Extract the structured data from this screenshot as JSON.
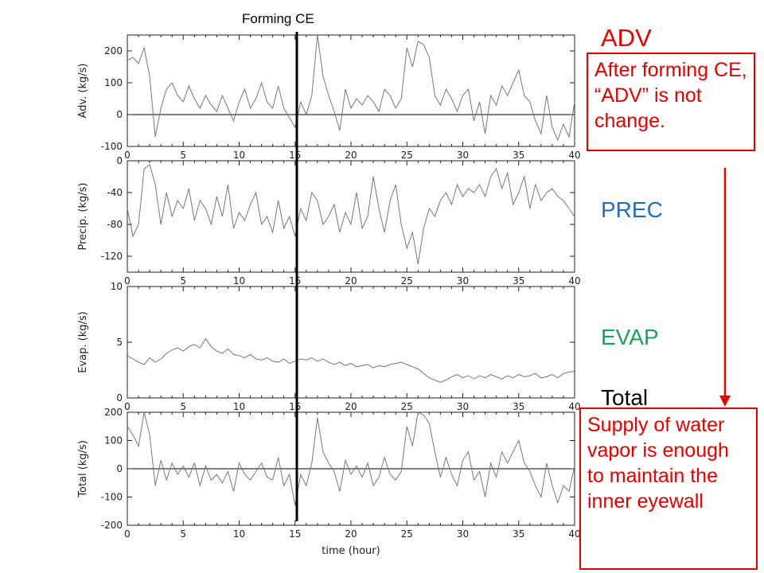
{
  "annotations": {
    "forming_ce_label": "Forming CE",
    "labels": {
      "adv": "ADV",
      "prec": "PREC",
      "evap": "EVAP",
      "total": "Total"
    },
    "adv_note": "After forming CE, “ADV” is not change.",
    "total_note": "Supply of water vapor is enough to maintain the inner eyewall",
    "colors": {
      "adv": "#e60000",
      "prec": "#1f6fba",
      "evap": "#1aa35a",
      "total": "#000000",
      "note": "#e60000",
      "arrow": "#e60000"
    }
  },
  "chart_data": [
    {
      "type": "line",
      "ylabel": "Adv. (kg/s)",
      "xlim": [
        0,
        40
      ],
      "ylim": [
        -100,
        250
      ],
      "yticks": [
        -100,
        0,
        100,
        200
      ],
      "xticks": [
        0,
        5,
        10,
        15,
        20,
        25,
        30,
        35,
        40
      ],
      "zero_line": true,
      "vline_x": 15.2,
      "x": [
        0,
        0.5,
        1,
        1.5,
        2,
        2.5,
        3,
        3.5,
        4,
        4.5,
        5,
        5.5,
        6,
        6.5,
        7,
        7.5,
        8,
        8.5,
        9,
        9.5,
        10,
        10.5,
        11,
        11.5,
        12,
        12.5,
        13,
        13.5,
        14,
        14.5,
        15,
        15.5,
        16,
        16.5,
        17,
        17.5,
        18,
        18.5,
        19,
        19.5,
        20,
        20.5,
        21,
        21.5,
        22,
        22.5,
        23,
        23.5,
        24,
        24.5,
        25,
        25.5,
        26,
        26.5,
        27,
        27.5,
        28,
        28.5,
        29,
        29.5,
        30,
        30.5,
        31,
        31.5,
        32,
        32.5,
        33,
        33.5,
        34,
        34.5,
        35,
        35.5,
        36,
        36.5,
        37,
        37.5,
        38,
        38.5,
        39,
        39.5,
        40
      ],
      "y": [
        170,
        180,
        160,
        210,
        120,
        -70,
        20,
        80,
        100,
        60,
        40,
        90,
        50,
        20,
        60,
        30,
        10,
        60,
        20,
        -20,
        40,
        80,
        20,
        50,
        100,
        40,
        20,
        90,
        20,
        -10,
        -40,
        40,
        0,
        60,
        250,
        120,
        60,
        10,
        -50,
        80,
        20,
        50,
        30,
        60,
        40,
        10,
        80,
        60,
        20,
        50,
        210,
        150,
        230,
        220,
        180,
        60,
        30,
        80,
        50,
        10,
        60,
        80,
        -20,
        40,
        -60,
        60,
        30,
        90,
        60,
        100,
        140,
        60,
        40,
        -20,
        -60,
        60,
        -40,
        -80,
        -30,
        -70,
        40
      ]
    },
    {
      "type": "line",
      "ylabel": "Precip. (kg/s)",
      "xlim": [
        0,
        40
      ],
      "ylim": [
        -140,
        0
      ],
      "yticks": [
        -120,
        -80,
        -40,
        0
      ],
      "xticks": [
        0,
        5,
        10,
        15,
        20,
        25,
        30,
        35,
        40
      ],
      "zero_line": false,
      "vline_x": 15.2,
      "x": [
        0,
        0.5,
        1,
        1.5,
        2,
        2.5,
        3,
        3.5,
        4,
        4.5,
        5,
        5.5,
        6,
        6.5,
        7,
        7.5,
        8,
        8.5,
        9,
        9.5,
        10,
        10.5,
        11,
        11.5,
        12,
        12.5,
        13,
        13.5,
        14,
        14.5,
        15,
        15.5,
        16,
        16.5,
        17,
        17.5,
        18,
        18.5,
        19,
        19.5,
        20,
        20.5,
        21,
        21.5,
        22,
        22.5,
        23,
        23.5,
        24,
        24.5,
        25,
        25.5,
        26,
        26.5,
        27,
        27.5,
        28,
        28.5,
        29,
        29.5,
        30,
        30.5,
        31,
        31.5,
        32,
        32.5,
        33,
        33.5,
        34,
        34.5,
        35,
        35.5,
        36,
        36.5,
        37,
        37.5,
        38,
        38.5,
        39,
        39.5,
        40
      ],
      "y": [
        -60,
        -95,
        -80,
        -10,
        -5,
        -30,
        -80,
        -40,
        -70,
        -50,
        -60,
        -35,
        -75,
        -50,
        -60,
        -80,
        -45,
        -70,
        -30,
        -85,
        -65,
        -75,
        -55,
        -40,
        -80,
        -70,
        -90,
        -50,
        -85,
        -70,
        -95,
        -60,
        -75,
        -40,
        -50,
        -80,
        -70,
        -55,
        -90,
        -65,
        -80,
        -40,
        -85,
        -70,
        -20,
        -60,
        -90,
        -50,
        -30,
        -80,
        -110,
        -90,
        -130,
        -85,
        -60,
        -70,
        -50,
        -40,
        -55,
        -30,
        -45,
        -35,
        -40,
        -30,
        -45,
        -20,
        -10,
        -35,
        -15,
        -55,
        -40,
        -20,
        -60,
        -30,
        -50,
        -40,
        -35,
        -45,
        -50,
        -60,
        -70
      ]
    },
    {
      "type": "line",
      "ylabel": "Evap. (kg/s)",
      "xlim": [
        0,
        40
      ],
      "ylim": [
        0,
        10
      ],
      "yticks": [
        0,
        5,
        10
      ],
      "xticks": [
        0,
        5,
        10,
        15,
        20,
        25,
        30,
        35,
        40
      ],
      "zero_line": false,
      "vline_x": 15.2,
      "x": [
        0,
        0.5,
        1,
        1.5,
        2,
        2.5,
        3,
        3.5,
        4,
        4.5,
        5,
        5.5,
        6,
        6.5,
        7,
        7.5,
        8,
        8.5,
        9,
        9.5,
        10,
        10.5,
        11,
        11.5,
        12,
        12.5,
        13,
        13.5,
        14,
        14.5,
        15,
        15.5,
        16,
        16.5,
        17,
        17.5,
        18,
        18.5,
        19,
        19.5,
        20,
        20.5,
        21,
        21.5,
        22,
        22.5,
        23,
        23.5,
        24,
        24.5,
        25,
        25.5,
        26,
        26.5,
        27,
        27.5,
        28,
        28.5,
        29,
        29.5,
        30,
        30.5,
        31,
        31.5,
        32,
        32.5,
        33,
        33.5,
        34,
        34.5,
        35,
        35.5,
        36,
        36.5,
        37,
        37.5,
        38,
        38.5,
        39,
        39.5,
        40
      ],
      "y": [
        3.8,
        3.5,
        3.2,
        3.0,
        3.6,
        3.2,
        3.5,
        4.0,
        4.3,
        4.5,
        4.2,
        4.6,
        4.8,
        4.5,
        5.3,
        4.6,
        4.2,
        4.0,
        4.4,
        3.9,
        3.8,
        3.6,
        3.9,
        3.5,
        3.4,
        3.6,
        3.3,
        3.2,
        3.5,
        3.1,
        3.3,
        3.5,
        3.4,
        3.6,
        3.3,
        3.5,
        3.2,
        3.0,
        3.2,
        2.9,
        3.1,
        2.8,
        2.9,
        3.0,
        2.7,
        2.9,
        2.8,
        3.0,
        3.1,
        3.2,
        3.0,
        2.8,
        2.6,
        2.2,
        1.8,
        1.6,
        1.4,
        1.6,
        1.9,
        2.1,
        1.8,
        2.0,
        1.7,
        2.0,
        1.8,
        2.1,
        1.9,
        1.7,
        2.0,
        1.8,
        2.1,
        1.9,
        2.0,
        2.2,
        1.8,
        1.9,
        2.1,
        1.8,
        2.2,
        2.3,
        2.4
      ]
    },
    {
      "type": "line",
      "ylabel": "Total (kg/s)",
      "xlabel": "time (hour)",
      "xlim": [
        0,
        40
      ],
      "ylim": [
        -200,
        200
      ],
      "yticks": [
        -200,
        -100,
        0,
        100,
        200
      ],
      "xticks": [
        0,
        5,
        10,
        15,
        20,
        25,
        30,
        35,
        40
      ],
      "zero_line": true,
      "vline_x": 15.2,
      "x": [
        0,
        0.5,
        1,
        1.5,
        2,
        2.5,
        3,
        3.5,
        4,
        4.5,
        5,
        5.5,
        6,
        6.5,
        7,
        7.5,
        8,
        8.5,
        9,
        9.5,
        10,
        10.5,
        11,
        11.5,
        12,
        12.5,
        13,
        13.5,
        14,
        14.5,
        15,
        15.5,
        16,
        16.5,
        17,
        17.5,
        18,
        18.5,
        19,
        19.5,
        20,
        20.5,
        21,
        21.5,
        22,
        22.5,
        23,
        23.5,
        24,
        24.5,
        25,
        25.5,
        26,
        26.5,
        27,
        27.5,
        28,
        28.5,
        29,
        29.5,
        30,
        30.5,
        31,
        31.5,
        32,
        32.5,
        33,
        33.5,
        34,
        34.5,
        35,
        35.5,
        36,
        36.5,
        37,
        37.5,
        38,
        38.5,
        39,
        39.5,
        40
      ],
      "y": [
        150,
        120,
        80,
        210,
        120,
        -60,
        30,
        -40,
        20,
        -20,
        10,
        -30,
        20,
        -60,
        10,
        -40,
        -20,
        -50,
        -10,
        -80,
        20,
        -20,
        -40,
        -10,
        20,
        -30,
        -40,
        40,
        -60,
        -20,
        -130,
        -20,
        -60,
        20,
        180,
        60,
        20,
        -10,
        -80,
        30,
        -20,
        10,
        -30,
        20,
        -60,
        -30,
        40,
        -20,
        -40,
        -10,
        150,
        80,
        200,
        190,
        160,
        60,
        -30,
        40,
        -20,
        -60,
        30,
        60,
        -40,
        -10,
        -100,
        20,
        -30,
        60,
        20,
        60,
        100,
        20,
        -10,
        -60,
        -100,
        20,
        -60,
        -120,
        -60,
        -80,
        10
      ]
    }
  ]
}
